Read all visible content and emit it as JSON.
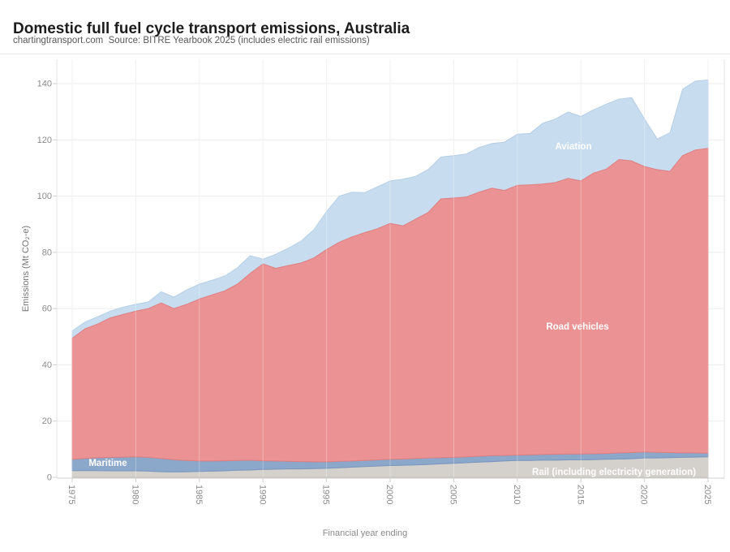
{
  "header": {
    "title": "Domestic full fuel cycle transport emissions, Australia",
    "subtitle": "chartingtransport.com  Source: BITRE Yearbook 2025 (includes electric rail emissions)"
  },
  "chart_data": {
    "type": "area",
    "stacked": true,
    "title": "Domestic full fuel cycle transport emissions, Australia",
    "xlabel": "Financial year ending",
    "ylabel": "Emissions (Mt CO₂-e)",
    "unit": "Mt CO2-e",
    "xlim": [
      1975,
      2025
    ],
    "ylim": [
      0,
      148
    ],
    "x_ticks": [
      1975,
      1980,
      1985,
      1990,
      1995,
      2000,
      2005,
      2010,
      2015,
      2020,
      2025
    ],
    "y_ticks": [
      0,
      20,
      40,
      60,
      80,
      100,
      120,
      140
    ],
    "grid": true,
    "legend_position": "labels-inside-plot",
    "x": [
      1975,
      1976,
      1977,
      1978,
      1979,
      1980,
      1981,
      1982,
      1983,
      1984,
      1985,
      1986,
      1987,
      1988,
      1989,
      1990,
      1991,
      1992,
      1993,
      1994,
      1995,
      1996,
      1997,
      1998,
      1999,
      2000,
      2001,
      2002,
      2003,
      2004,
      2005,
      2006,
      2007,
      2008,
      2009,
      2010,
      2011,
      2012,
      2013,
      2014,
      2015,
      2016,
      2017,
      2018,
      2019,
      2020,
      2021,
      2022,
      2023,
      2024,
      2025
    ],
    "series": [
      {
        "name": "Rail (including electricity generation)",
        "color": "#d4d1cc",
        "stroke": "#c6c2bc",
        "values": [
          2.4,
          2.4,
          2.4,
          2.3,
          2.3,
          2.3,
          2.2,
          2.0,
          1.9,
          2.0,
          2.1,
          2.2,
          2.3,
          2.5,
          2.6,
          2.8,
          2.9,
          3.0,
          3.0,
          3.1,
          3.2,
          3.4,
          3.6,
          3.8,
          4.0,
          4.2,
          4.3,
          4.4,
          4.6,
          4.8,
          5.0,
          5.2,
          5.4,
          5.6,
          5.8,
          6.0,
          6.0,
          6.1,
          6.1,
          6.2,
          6.2,
          6.3,
          6.4,
          6.5,
          6.6,
          6.9,
          6.9,
          7.0,
          7.1,
          7.2,
          7.3
        ]
      },
      {
        "name": "Maritime",
        "color": "#8ba7c9",
        "stroke": "#7795bd",
        "values": [
          4.0,
          4.3,
          4.6,
          4.8,
          4.9,
          5.0,
          4.9,
          4.7,
          4.4,
          4.0,
          3.7,
          3.6,
          3.6,
          3.5,
          3.5,
          3.1,
          2.9,
          2.7,
          2.6,
          2.4,
          2.3,
          2.3,
          2.2,
          2.2,
          2.2,
          2.2,
          2.2,
          2.3,
          2.3,
          2.2,
          2.1,
          2.1,
          2.1,
          2.1,
          2.0,
          1.9,
          2.0,
          2.0,
          2.1,
          2.1,
          2.1,
          2.1,
          2.1,
          2.2,
          2.2,
          2.1,
          2.0,
          1.8,
          1.6,
          1.5,
          1.3
        ]
      },
      {
        "name": "Road vehicles",
        "color": "#eb9394",
        "stroke": "#e07e80",
        "values": [
          43.0,
          46.1,
          47.5,
          49.6,
          50.7,
          51.8,
          52.9,
          55.3,
          53.7,
          55.5,
          57.6,
          59.1,
          60.4,
          62.7,
          66.4,
          70.0,
          68.5,
          69.6,
          70.6,
          72.5,
          75.5,
          77.9,
          79.7,
          81.0,
          82.2,
          83.9,
          82.9,
          85.1,
          87.3,
          92.0,
          92.2,
          92.4,
          93.9,
          95.1,
          94.2,
          95.9,
          96.0,
          96.2,
          96.6,
          98.0,
          97.1,
          99.8,
          101.1,
          104.3,
          103.7,
          101.5,
          100.5,
          100.0,
          105.7,
          107.7,
          108.4
        ]
      },
      {
        "name": "Aviation",
        "color": "#c7dcee",
        "stroke": "#b5cfe6",
        "values": [
          2.6,
          2.4,
          2.6,
          2.4,
          2.6,
          2.4,
          2.4,
          4.0,
          4.1,
          5.1,
          5.3,
          5.2,
          5.3,
          5.8,
          6.3,
          1.7,
          5.0,
          6.2,
          7.8,
          10.0,
          13.5,
          16.4,
          15.9,
          14.2,
          14.9,
          15.1,
          16.6,
          15.2,
          15.3,
          14.9,
          15.1,
          15.3,
          15.9,
          15.9,
          17.2,
          18.2,
          18.3,
          21.6,
          22.6,
          23.6,
          22.9,
          22.5,
          23.1,
          21.5,
          22.5,
          16.9,
          10.9,
          13.7,
          23.6,
          24.5,
          24.3
        ]
      }
    ],
    "colors": {
      "grid": "#ececec",
      "axis_line": "#cfcfcf",
      "plot_border": "#e3e3e3",
      "tick_text": "#8a8a8a",
      "axis_title_text": "#747474"
    }
  }
}
